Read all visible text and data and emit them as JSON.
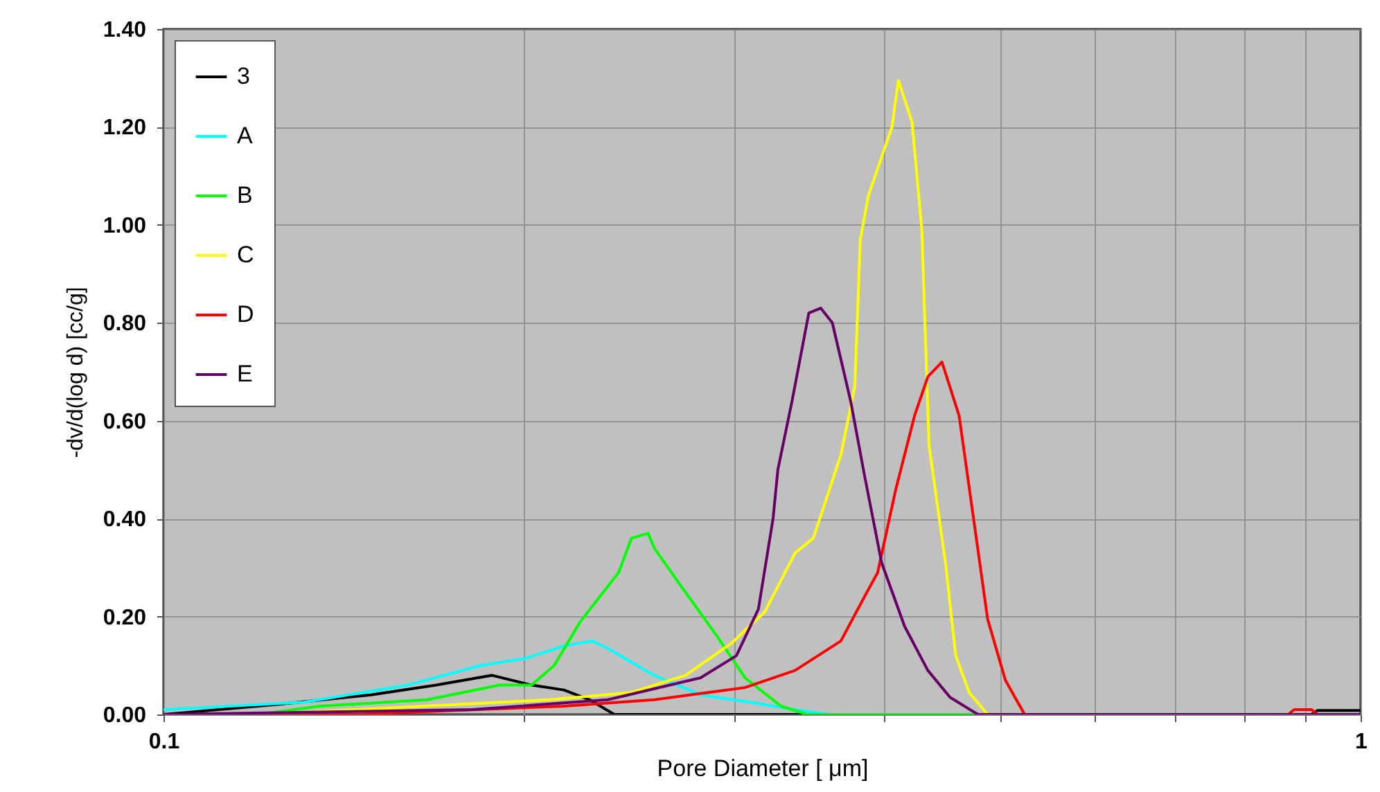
{
  "chart_data": {
    "type": "line",
    "xlabel": "Pore Diameter [ μm]",
    "ylabel": "-dv/d(log d) [cc/g]",
    "log": "x",
    "xlim": [
      0.1,
      1
    ],
    "ylim": [
      0,
      1.4
    ],
    "xticks": [
      0.1,
      {
        "value": 0.2,
        "label": null
      },
      {
        "value": 0.3,
        "label": null
      },
      {
        "value": 0.4,
        "label": null
      },
      {
        "value": 0.5,
        "label": null
      },
      {
        "value": 0.6,
        "label": null
      },
      {
        "value": 0.7,
        "label": null
      },
      {
        "value": 0.8,
        "label": null
      },
      {
        "value": 0.9,
        "label": null
      },
      1
    ],
    "yticks": [
      {
        "value": 0,
        "label": "0.00"
      },
      {
        "value": 0.2,
        "label": "0.20"
      },
      {
        "value": 0.4,
        "label": "0.40"
      },
      {
        "value": 0.6,
        "label": "0.60"
      },
      {
        "value": 0.8,
        "label": "0.80"
      },
      {
        "value": 1.0,
        "label": "1.00"
      },
      {
        "value": 1.2,
        "label": "1.20"
      },
      {
        "value": 1.4,
        "label": "1.40"
      }
    ],
    "grid": true,
    "legend": "top left",
    "marker": "none",
    "line_style": "solid",
    "series": [
      {
        "name": "3",
        "color": "#000000",
        "x": [
          0.1,
          0.124,
          0.149,
          0.169,
          0.188,
          0.203,
          0.216,
          0.227,
          0.238,
          0.26,
          0.91,
          0.92,
          1
        ],
        "values": [
          0,
          0.02,
          0.04,
          0.06,
          0.08,
          0.06,
          0.05,
          0.03,
          0,
          0,
          0,
          0.008,
          0.008
        ]
      },
      {
        "name": "A",
        "color": "#00ffff",
        "x": [
          0.1,
          0.131,
          0.16,
          0.184,
          0.201,
          0.216,
          0.228,
          0.235,
          0.257,
          0.281,
          0.309,
          0.337,
          0.36,
          1
        ],
        "values": [
          0.01,
          0.025,
          0.06,
          0.1,
          0.115,
          0.14,
          0.15,
          0.135,
          0.08,
          0.04,
          0.025,
          0.01,
          0,
          0
        ]
      },
      {
        "name": "B",
        "color": "#00ff00",
        "x": [
          0.1,
          0.12,
          0.135,
          0.166,
          0.191,
          0.203,
          0.212,
          0.223,
          0.24,
          0.246,
          0.254,
          0.257,
          0.271,
          0.29,
          0.306,
          0.328,
          0.345,
          1
        ],
        "values": [
          0,
          0,
          0.017,
          0.03,
          0.06,
          0.06,
          0.1,
          0.19,
          0.29,
          0.36,
          0.37,
          0.34,
          0.26,
          0.16,
          0.075,
          0.017,
          0,
          0
        ]
      },
      {
        "name": "C",
        "color": "#ffff00",
        "x": [
          0.1,
          0.12,
          0.21,
          0.246,
          0.273,
          0.298,
          0.318,
          0.337,
          0.349,
          0.368,
          0.378,
          0.382,
          0.388,
          0.406,
          0.411,
          0.422,
          0.43,
          0.436,
          0.45,
          0.459,
          0.471,
          0.488,
          1
        ],
        "values": [
          0,
          0,
          0.03,
          0.045,
          0.08,
          0.145,
          0.21,
          0.33,
          0.36,
          0.53,
          0.67,
          0.97,
          1.06,
          1.2,
          1.295,
          1.21,
          0.99,
          0.55,
          0.31,
          0.12,
          0.045,
          0,
          0
        ]
      },
      {
        "name": "D",
        "color": "#ff0000",
        "x": [
          0.1,
          0.144,
          0.216,
          0.257,
          0.306,
          0.337,
          0.368,
          0.385,
          0.395,
          0.409,
          0.424,
          0.435,
          0.447,
          0.462,
          0.475,
          0.488,
          0.505,
          0.524,
          0.87,
          0.88,
          0.91,
          0.92,
          1
        ],
        "values": [
          0,
          0,
          0.017,
          0.03,
          0.055,
          0.09,
          0.15,
          0.24,
          0.29,
          0.46,
          0.61,
          0.69,
          0.72,
          0.61,
          0.4,
          0.195,
          0.07,
          0,
          0,
          0.01,
          0.01,
          0,
          0
        ]
      },
      {
        "name": "E",
        "color": "#660066",
        "x": [
          0.1,
          0.181,
          0.235,
          0.281,
          0.301,
          0.314,
          0.323,
          0.326,
          0.335,
          0.346,
          0.354,
          0.362,
          0.375,
          0.385,
          0.398,
          0.416,
          0.435,
          0.454,
          0.479,
          1
        ],
        "values": [
          0,
          0.01,
          0.03,
          0.075,
          0.12,
          0.215,
          0.4,
          0.5,
          0.64,
          0.82,
          0.83,
          0.8,
          0.64,
          0.49,
          0.31,
          0.18,
          0.09,
          0.035,
          0,
          0
        ]
      }
    ]
  }
}
